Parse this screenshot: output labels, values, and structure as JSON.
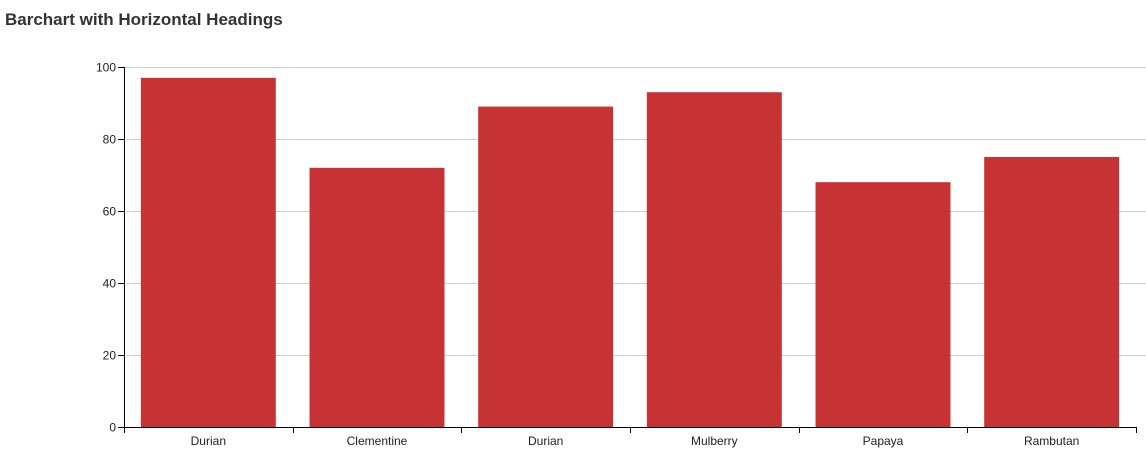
{
  "chart_data": {
    "type": "bar",
    "title": "Barchart with Horizontal Headings",
    "xlabel": "",
    "ylabel": "",
    "categories": [
      "Durian",
      "Clementine",
      "Durian",
      "Mulberry",
      "Papaya",
      "Rambutan"
    ],
    "values": [
      97,
      72,
      89,
      93,
      68,
      75
    ],
    "ylim": [
      0,
      100
    ],
    "yticks": [
      0,
      20,
      40,
      60,
      80,
      100
    ],
    "grid": true,
    "bar_color": "#c73235",
    "grid_color": "#cccccc",
    "axis_color": "#000000"
  }
}
